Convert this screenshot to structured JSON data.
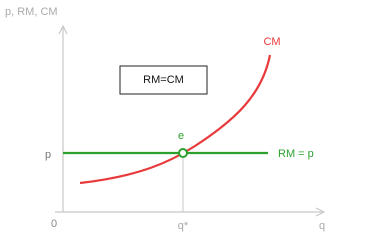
{
  "axes": {
    "y_label": "p, RM, CM",
    "x_label": "q",
    "origin": "0",
    "p_label": "p",
    "q_label": "q*"
  },
  "curves": {
    "cm": "CM",
    "rm": "RM = p"
  },
  "point": "e",
  "box": "RM=CM"
}
